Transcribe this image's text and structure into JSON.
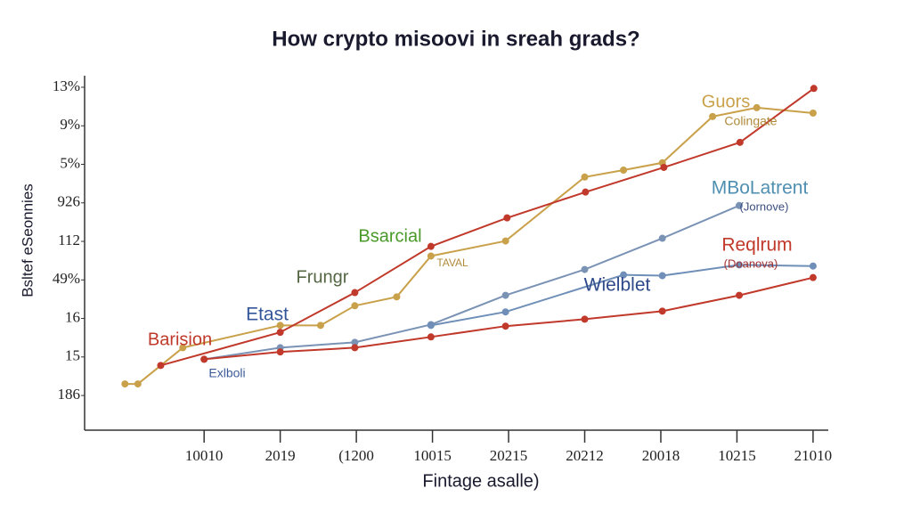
{
  "chart_data": {
    "type": "line",
    "title": "How crypto misoovi in sreah grads?",
    "x_label": "Fintage asalle)",
    "y_label": "Bsltef eSeonnies",
    "xlim": [
      -1.57,
      8.2
    ],
    "ylim": [
      -0.9,
      8.3
    ],
    "xticks": [
      {
        "value": 0,
        "label": "10010"
      },
      {
        "value": 1,
        "label": "2019"
      },
      {
        "value": 2,
        "label": "(1200"
      },
      {
        "value": 3,
        "label": "10015"
      },
      {
        "value": 4,
        "label": "20215"
      },
      {
        "value": 5,
        "label": "20212"
      },
      {
        "value": 6,
        "label": "20018"
      },
      {
        "value": 7,
        "label": "10215"
      },
      {
        "value": 8,
        "label": "21010"
      }
    ],
    "yticks": [
      {
        "value": 0,
        "label": "186"
      },
      {
        "value": 1,
        "label": "15"
      },
      {
        "value": 2,
        "label": "16"
      },
      {
        "value": 3,
        "label": "49%"
      },
      {
        "value": 4,
        "label": "112"
      },
      {
        "value": 5,
        "label": "926"
      },
      {
        "value": 6,
        "label": "5%"
      },
      {
        "value": 7,
        "label": "9%"
      },
      {
        "value": 8,
        "label": "13%"
      }
    ],
    "series": [
      {
        "color": "#c9a14a",
        "x": [
          -1.04,
          -0.87,
          -0.28,
          1,
          1.53,
          1.98,
          2.53,
          2.98,
          3.96,
          5,
          5.51,
          6.02,
          6.68,
          7.26,
          8
        ],
        "values": [
          0.3,
          0.3,
          1.24,
          1.82,
          1.82,
          2.33,
          2.56,
          3.62,
          4.01,
          5.67,
          5.85,
          6.04,
          7.24,
          7.47,
          7.33
        ]
      },
      {
        "color": "#7a93b5",
        "x": [
          0,
          1,
          1.98,
          2.98,
          3.96,
          5,
          6.02,
          7.03
        ],
        "values": [
          0.94,
          1.24,
          1.38,
          1.84,
          2.6,
          3.27,
          4.08,
          4.93
        ]
      },
      {
        "color": "#6f8fb8",
        "x": [
          2.98,
          3.96,
          5.51,
          6.02,
          7.03,
          8
        ],
        "values": [
          1.82,
          2.17,
          3.13,
          3.11,
          3.39,
          3.36
        ]
      },
      {
        "color": "#c0392b",
        "x": [
          0,
          1,
          1.98,
          2.98,
          3.96,
          5,
          6.02,
          7.03,
          8
        ],
        "values": [
          0.94,
          1.13,
          1.24,
          1.52,
          1.8,
          1.98,
          2.19,
          2.6,
          3.06
        ]
      },
      {
        "color": "#c0392b",
        "x": [
          -0.57,
          1,
          1.98,
          2.98,
          3.98,
          5.01,
          6.04,
          7.04,
          8.01
        ],
        "values": [
          0.78,
          1.64,
          2.67,
          3.87,
          4.61,
          5.28,
          5.92,
          6.57,
          7.97
        ]
      }
    ],
    "annotations": [
      {
        "text": "Guors",
        "color": "#c9a14a"
      },
      {
        "text": "Colingate",
        "color": "#b08a3a"
      },
      {
        "text": "MBoLatrent",
        "color": "#4f8fb0"
      },
      {
        "text": "(Jornove)",
        "color": "#3b4f80"
      },
      {
        "text": "Reqlrum",
        "color": "#c0392b"
      },
      {
        "text": "(Doanova)",
        "color": "#a03030"
      },
      {
        "text": "Bsarcial",
        "color": "#4a9a2a"
      },
      {
        "text": "TAVAL",
        "color": "#b08a3a"
      },
      {
        "text": "Frungr",
        "color": "#556644"
      },
      {
        "text": "Wielblet",
        "color": "#2f4a8a"
      },
      {
        "text": "Etast",
        "color": "#335599"
      },
      {
        "text": "Barision",
        "color": "#c0392b"
      },
      {
        "text": "Exlboli",
        "color": "#3b5a99"
      }
    ]
  }
}
